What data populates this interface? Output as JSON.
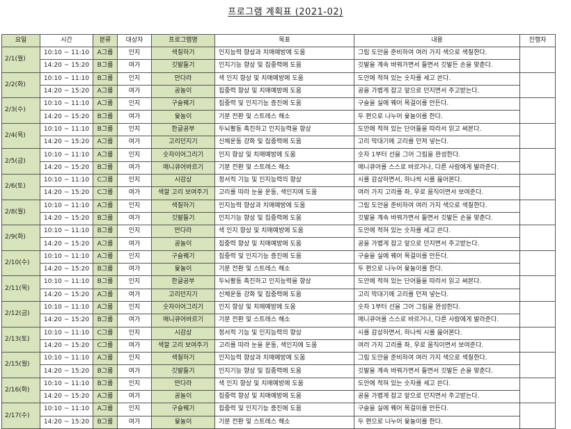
{
  "title": "프로그램 계획표 (2021-02)",
  "colors": {
    "header_green": "#d8e4bc",
    "border": "#555555"
  },
  "columns": [
    "요일",
    "시간",
    "분류",
    "대상자",
    "프로그램명",
    "목표",
    "내용",
    "진행자"
  ],
  "days": [
    {
      "date": "2/1(월)",
      "presenter": "",
      "sessions": [
        {
          "time": "10:10 ~ 11:10",
          "group": "A그룹",
          "target": "인지",
          "program": "색칠하기",
          "goal": "인지능력 향상과 치매예방에 도움",
          "content": "그림 도안을 준비하여 여러 가지 색으로 색칠한다."
        },
        {
          "time": "14:20 ~ 15:20",
          "group": "B그룹",
          "target": "여가",
          "program": "깃발들기",
          "goal": "인지기능 향상 및 집중력에 도움",
          "content": "깃발을 계속 바꿔가면서 들면서 깃발든 손을 맞춘다."
        }
      ]
    },
    {
      "date": "2/2(화)",
      "presenter": "",
      "sessions": [
        {
          "time": "10:10 ~ 11:10",
          "group": "B그룹",
          "target": "인지",
          "program": "만다라",
          "goal": "색 인지 향상 및 치매예방에 도움",
          "content": "도안에 적혀 있는 숫자를 세고 쓴다."
        },
        {
          "time": "14:20 ~ 15:20",
          "group": "A그룹",
          "target": "여가",
          "program": "공놀이",
          "goal": "집중력 향상 및 치매예방에 도움",
          "content": "공을 가볍게 잡고 앞으로 던지면서 주고받는다."
        }
      ]
    },
    {
      "date": "2/3(수)",
      "presenter": "",
      "sessions": [
        {
          "time": "10:10 ~ 11:10",
          "group": "A그룹",
          "target": "인지",
          "program": "구슬꿰기",
          "goal": "집중력 및 인지기능 증진에 도움",
          "content": "구슬을 실에 꿰어 목걸이를 만든다."
        },
        {
          "time": "14:20 ~ 15:20",
          "group": "B그룹",
          "target": "여가",
          "program": "윷놀이",
          "goal": "기분 전환 및 스트레스 해소",
          "content": "두 편으로 나누어 윷놀이를 한다."
        }
      ]
    },
    {
      "date": "2/4(목)",
      "presenter": "",
      "sessions": [
        {
          "time": "10:10 ~ 11:10",
          "group": "B그룹",
          "target": "인지",
          "program": "한글공부",
          "goal": "두뇌활동 촉진하고 인지능력을 향상",
          "content": "도안에 적혀 있는 단어들을 따라서 읽고 써본다."
        },
        {
          "time": "14:20 ~ 15:20",
          "group": "A그룹",
          "target": "여가",
          "program": "고리던지기",
          "goal": "신체운동 강화 및 집중력에 도움",
          "content": "고리 막대기에 고리를 던져 넣는다."
        }
      ]
    },
    {
      "date": "2/5(금)",
      "presenter": "",
      "sessions": [
        {
          "time": "10:10 ~ 11:10",
          "group": "A그룹",
          "target": "인지",
          "program": "숫자이어그리기",
          "goal": "인지 향상 및 치매예방에 도움",
          "content": "숫자 1부터 선을 그어 그림을 완성한다."
        },
        {
          "time": "14:20 ~ 15:20",
          "group": "B그룹",
          "target": "여가",
          "program": "매니큐어바르기",
          "goal": "기분 전환 및 스트레스 해소",
          "content": "매니큐어를 스스로 바르거나, 다른 사람에게 발라준다."
        }
      ]
    },
    {
      "date": "2/6(토)",
      "presenter": "",
      "sessions": [
        {
          "time": "10:10 ~ 11:10",
          "group": "C그룹",
          "target": "인지",
          "program": "시감상",
          "goal": "정서적 기능 및 인지능력의 향상",
          "content": "시를 감상하면서, 하나씩 시를 읊어본다."
        },
        {
          "time": "14:20 ~ 15:20",
          "group": "C그룹",
          "target": "여가",
          "program": "색깔 고리 보여주기",
          "goal": "고리를 따라 눈을 운동, 색인지에 도움",
          "content": "여러 가지 고리를 좌, 우로 움직이면서 보여준다."
        }
      ]
    },
    {
      "date": "2/8(월)",
      "presenter": "",
      "sessions": [
        {
          "time": "10:10 ~ 11:10",
          "group": "A그룹",
          "target": "인지",
          "program": "색칠하기",
          "goal": "인지능력 향상과 치매예방에 도움",
          "content": "그림 도안을 준비하여 여러 가지 색으로 색칠한다."
        },
        {
          "time": "14:20 ~ 15:20",
          "group": "B그룹",
          "target": "여가",
          "program": "깃발들기",
          "goal": "인지기능 향상 및 집중력에 도움",
          "content": "깃발을 계속 바꿔가면서 들면서 깃발든 손을 맞춘다."
        }
      ]
    },
    {
      "date": "2/9(화)",
      "presenter": "",
      "sessions": [
        {
          "time": "10:10 ~ 11:10",
          "group": "B그룹",
          "target": "인지",
          "program": "만다라",
          "goal": "색 인지 향상 및 치매예방에 도움",
          "content": "도안에 적혀 있는 숫자를 세고 쓴다."
        },
        {
          "time": "14:20 ~ 15:20",
          "group": "A그룹",
          "target": "여가",
          "program": "공놀이",
          "goal": "집중력 향상 및 치매예방에 도움",
          "content": "공을 가볍게 잡고 앞으로 던지면서 주고받는다."
        }
      ]
    },
    {
      "date": "2/10(수)",
      "presenter": "",
      "sessions": [
        {
          "time": "10:10 ~ 11:10",
          "group": "A그룹",
          "target": "인지",
          "program": "구슬꿰기",
          "goal": "집중력 및 인지기능 증진에 도움",
          "content": "구슬을 실에 꿰어 목걸이를 만든다."
        },
        {
          "time": "14:20 ~ 15:20",
          "group": "B그룹",
          "target": "여가",
          "program": "윷놀이",
          "goal": "기분 전환 및 스트레스 해소",
          "content": "두 편으로 나누어 윷놀이를 한다."
        }
      ]
    },
    {
      "date": "2/11(목)",
      "presenter": "",
      "sessions": [
        {
          "time": "10:10 ~ 11:10",
          "group": "B그룹",
          "target": "인지",
          "program": "한글공부",
          "goal": "두뇌활동 촉진하고 인지능력을 향상",
          "content": "도안에 적혀 있는 단어들을 따라서 읽고 써본다."
        },
        {
          "time": "14:20 ~ 15:20",
          "group": "A그룹",
          "target": "여가",
          "program": "고리던지기",
          "goal": "신체운동 강화 및 집중력에 도움",
          "content": "고리 막대기에 고리를 던져 넣는다."
        }
      ]
    },
    {
      "date": "2/12(금)",
      "presenter": "",
      "sessions": [
        {
          "time": "10:10 ~ 11:10",
          "group": "A그룹",
          "target": "인지",
          "program": "숫자이어그리기",
          "goal": "인지 향상 및 치매예방에 도움",
          "content": "숫자 1부터 선을 그어 그림을 완성한다."
        },
        {
          "time": "14:20 ~ 15:20",
          "group": "B그룹",
          "target": "여가",
          "program": "매니큐어바르기",
          "goal": "기분 전환 및 스트레스 해소",
          "content": "매니큐어를 스스로 바르거나, 다른 사람에게 발라준다."
        }
      ]
    },
    {
      "date": "2/13(토)",
      "presenter": "",
      "sessions": [
        {
          "time": "10:10 ~ 11:10",
          "group": "C그룹",
          "target": "인지",
          "program": "시감상",
          "goal": "정서적 기능 및 인지능력의 향상",
          "content": "시를 감상하면서, 하나씩 시를 읊어본다."
        },
        {
          "time": "14:20 ~ 15:20",
          "group": "C그룹",
          "target": "여가",
          "program": "색깔 고리 보여주기",
          "goal": "고리를 따라 눈을 운동, 색인지에 도움",
          "content": "여러 가지 고리를 좌, 우로 움직이면서 보여준다."
        }
      ]
    },
    {
      "date": "2/15(월)",
      "presenter": "",
      "sessions": [
        {
          "time": "10:10 ~ 11:10",
          "group": "A그룹",
          "target": "인지",
          "program": "색칠하기",
          "goal": "인지능력 향상과 치매예방에 도움",
          "content": "그림 도안을 준비하여 여러 가지 색으로 색칠한다."
        },
        {
          "time": "14:20 ~ 15:20",
          "group": "B그룹",
          "target": "여가",
          "program": "깃발들기",
          "goal": "인지기능 향상 및 집중력에 도움",
          "content": "깃발을 계속 바꿔가면서 들면서 깃발든 손을 맞춘다."
        }
      ]
    },
    {
      "date": "2/16(화)",
      "presenter": "",
      "sessions": [
        {
          "time": "10:10 ~ 11:10",
          "group": "B그룹",
          "target": "인지",
          "program": "만다라",
          "goal": "색 인지 향상 및 치매예방에 도움",
          "content": "도안에 적혀 있는 숫자를 세고 쓴다."
        },
        {
          "time": "14:20 ~ 15:20",
          "group": "A그룹",
          "target": "여가",
          "program": "공놀이",
          "goal": "집중력 향상 및 치매예방에 도움",
          "content": "공을 가볍게 잡고 앞으로 던지면서 주고받는다."
        }
      ]
    },
    {
      "date": "2/17(수)",
      "presenter": "",
      "sessions": [
        {
          "time": "10:10 ~ 11:10",
          "group": "A그룹",
          "target": "인지",
          "program": "구슬꿰기",
          "goal": "집중력 및 인지기능 증진에 도움",
          "content": "구슬을 실에 꿰어 목걸이를 만든다."
        },
        {
          "time": "14:20 ~ 15:20",
          "group": "B그룹",
          "target": "여가",
          "program": "윷놀이",
          "goal": "기분 전환 및 스트레스 해소",
          "content": "두 편으로 나누어 윷놀이를 한다."
        }
      ]
    }
  ]
}
